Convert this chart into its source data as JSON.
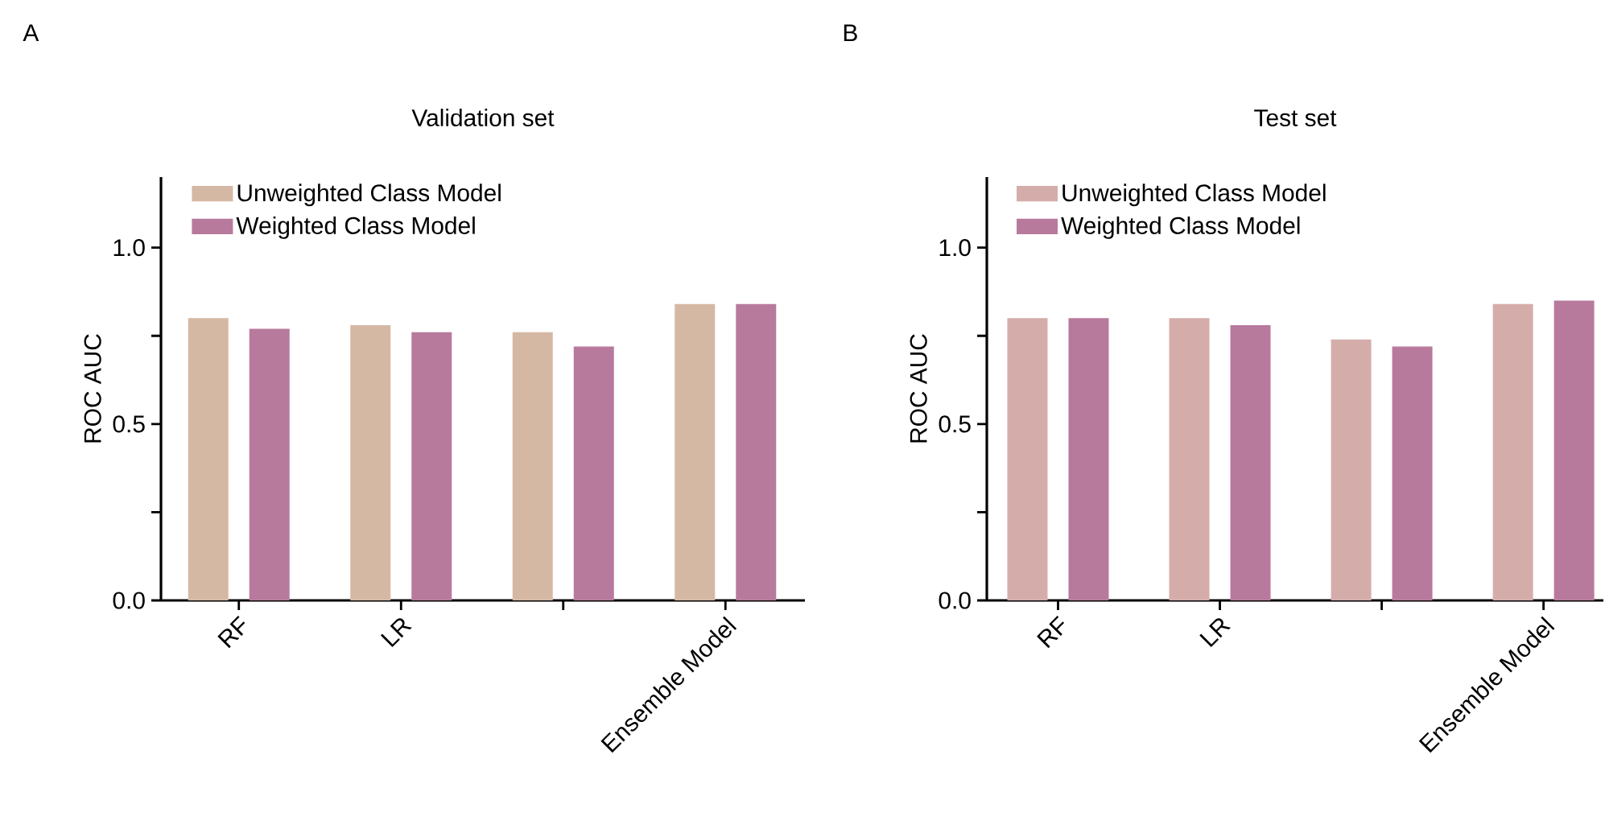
{
  "chart_data": [
    {
      "type": "bar",
      "title": "Validation set",
      "ylabel": "ROC AUC",
      "annotations": [
        "A"
      ],
      "categories": [
        "RF",
        "LR",
        null,
        "Ensemble Model"
      ],
      "series": [
        {
          "name": "Unweighted Class Model",
          "color": "#d5b8a4",
          "values": [
            0.8,
            0.78,
            0.76,
            0.84
          ]
        },
        {
          "name": "Weighted Class Model",
          "color": "#b87a9c",
          "values": [
            0.77,
            0.76,
            0.72,
            0.84
          ]
        }
      ],
      "ylim": [
        0,
        1.2
      ],
      "yticks": [
        {
          "value": 0,
          "label": "0.0"
        },
        {
          "value": 0.25,
          "label": null
        },
        0.5,
        {
          "value": 0.75,
          "label": null
        },
        {
          "value": 1.0,
          "label": "1.0"
        }
      ],
      "legend": "top left"
    },
    {
      "type": "bar",
      "title": "Test set",
      "ylabel": "ROC AUC",
      "annotations": [
        "B"
      ],
      "categories": [
        "RF",
        "LR",
        null,
        "Ensemble Model"
      ],
      "series": [
        {
          "name": "Unweighted Class Model",
          "color": "#d4adab",
          "values": [
            0.8,
            0.8,
            0.74,
            0.84
          ]
        },
        {
          "name": "Weighted Class Model",
          "color": "#b87a9c",
          "values": [
            0.8,
            0.78,
            0.72,
            0.85
          ]
        }
      ],
      "ylim": [
        0,
        1.2
      ],
      "yticks": [
        {
          "value": 0,
          "label": "0.0"
        },
        {
          "value": 0.25,
          "label": null
        },
        0.5,
        {
          "value": 0.75,
          "label": null
        },
        {
          "value": 1.0,
          "label": "1.0"
        }
      ],
      "legend": "top left"
    }
  ]
}
